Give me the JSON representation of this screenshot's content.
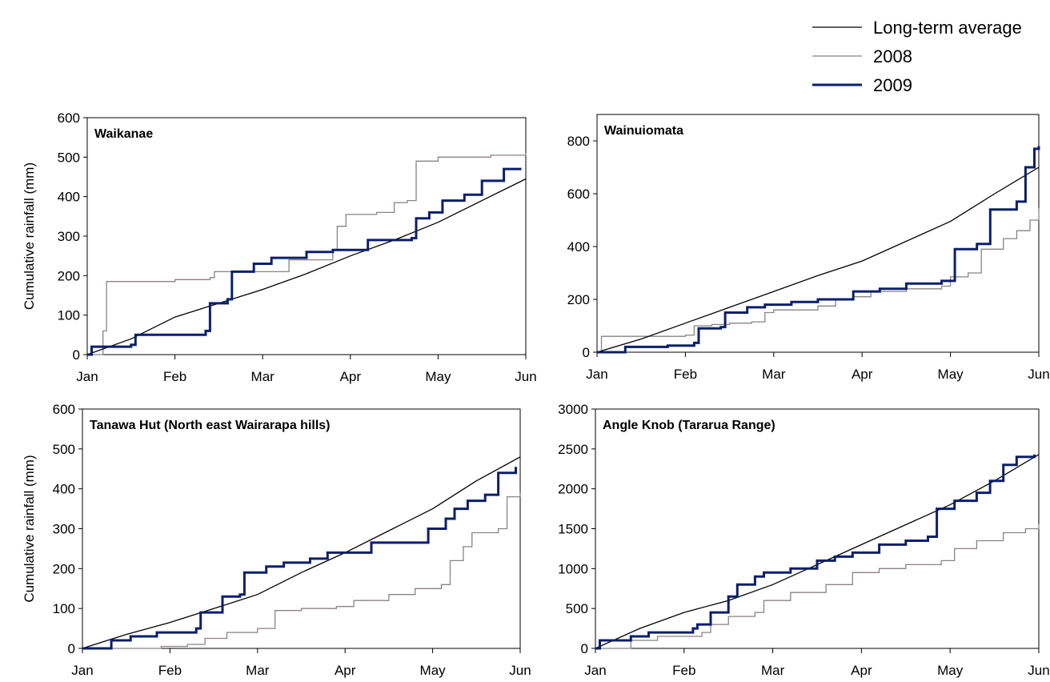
{
  "legend": {
    "entries": [
      {
        "label": "Long-term average",
        "color": "#000000",
        "weight": "thin"
      },
      {
        "label": "2008",
        "color": "#8c8282",
        "weight": "thin"
      },
      {
        "label": "2009",
        "color": "#0b1f6b",
        "weight": "thick"
      }
    ],
    "placement": "top-right"
  },
  "chart_data": [
    {
      "type": "line",
      "title": "Waikanae",
      "ylabel": "Cumulative rainfall (mm)",
      "xlabel": "",
      "x_ticks": [
        "Jan",
        "Feb",
        "Mar",
        "Apr",
        "May",
        "Jun"
      ],
      "xlim": [
        0,
        5
      ],
      "ylim": [
        0,
        600
      ],
      "y_ticks": [
        "0",
        "100",
        "200",
        "300",
        "400",
        "500",
        "600"
      ],
      "grid": false,
      "series": [
        {
          "name": "Long-term average",
          "points": [
            [
              0,
              0
            ],
            [
              0.5,
              40
            ],
            [
              1,
              95
            ],
            [
              1.5,
              130
            ],
            [
              2,
              165
            ],
            [
              2.5,
              205
            ],
            [
              3,
              250
            ],
            [
              3.5,
              290
            ],
            [
              4,
              335
            ],
            [
              4.5,
              390
            ],
            [
              5,
              445
            ]
          ]
        },
        {
          "name": "2008",
          "points": [
            [
              0,
              0
            ],
            [
              0.15,
              0
            ],
            [
              0.18,
              60
            ],
            [
              0.22,
              185
            ],
            [
              1,
              190
            ],
            [
              1.4,
              195
            ],
            [
              1.45,
              210
            ],
            [
              2.3,
              240
            ],
            [
              2.7,
              240
            ],
            [
              2.8,
              265
            ],
            [
              2.85,
              325
            ],
            [
              2.95,
              355
            ],
            [
              3.3,
              360
            ],
            [
              3.5,
              385
            ],
            [
              3.65,
              390
            ],
            [
              3.75,
              490
            ],
            [
              4,
              500
            ],
            [
              4.6,
              505
            ],
            [
              5,
              510
            ]
          ]
        },
        {
          "name": "2009",
          "points": [
            [
              0,
              0
            ],
            [
              0.05,
              20
            ],
            [
              0.5,
              25
            ],
            [
              0.55,
              50
            ],
            [
              1.35,
              60
            ],
            [
              1.4,
              130
            ],
            [
              1.6,
              140
            ],
            [
              1.65,
              210
            ],
            [
              1.9,
              230
            ],
            [
              2.1,
              245
            ],
            [
              2.5,
              260
            ],
            [
              2.8,
              265
            ],
            [
              3.1,
              265
            ],
            [
              3.2,
              290
            ],
            [
              3.7,
              295
            ],
            [
              3.75,
              345
            ],
            [
              3.9,
              360
            ],
            [
              4.05,
              390
            ],
            [
              4.3,
              405
            ],
            [
              4.5,
              440
            ],
            [
              4.75,
              470
            ],
            [
              4.95,
              470
            ]
          ]
        }
      ]
    },
    {
      "type": "line",
      "title": "Wainuiomata",
      "ylabel": "",
      "xlabel": "",
      "x_ticks": [
        "Jan",
        "Feb",
        "Mar",
        "Apr",
        "May",
        "Jun"
      ],
      "xlim": [
        0,
        5
      ],
      "ylim": [
        0,
        900
      ],
      "y_ticks": [
        "0",
        "200",
        "400",
        "600",
        "800"
      ],
      "grid": false,
      "series": [
        {
          "name": "Long-term average",
          "points": [
            [
              0,
              0
            ],
            [
              0.5,
              50
            ],
            [
              1,
              110
            ],
            [
              1.5,
              170
            ],
            [
              2,
              230
            ],
            [
              2.5,
              290
            ],
            [
              3,
              345
            ],
            [
              3.5,
              420
            ],
            [
              4,
              495
            ],
            [
              4.5,
              600
            ],
            [
              5,
              700
            ]
          ]
        },
        {
          "name": "2008",
          "points": [
            [
              0,
              0
            ],
            [
              0.05,
              60
            ],
            [
              1,
              65
            ],
            [
              1.1,
              100
            ],
            [
              1.3,
              105
            ],
            [
              1.5,
              110
            ],
            [
              1.75,
              115
            ],
            [
              1.9,
              150
            ],
            [
              2,
              160
            ],
            [
              2.5,
              175
            ],
            [
              2.7,
              200
            ],
            [
              2.9,
              210
            ],
            [
              3.1,
              230
            ],
            [
              3.5,
              240
            ],
            [
              3.9,
              250
            ],
            [
              4,
              285
            ],
            [
              4.2,
              300
            ],
            [
              4.35,
              390
            ],
            [
              4.6,
              430
            ],
            [
              4.75,
              460
            ],
            [
              4.9,
              500
            ],
            [
              5,
              545
            ]
          ]
        },
        {
          "name": "2009",
          "points": [
            [
              0,
              0
            ],
            [
              0.3,
              0
            ],
            [
              0.32,
              20
            ],
            [
              0.8,
              25
            ],
            [
              1.1,
              35
            ],
            [
              1.15,
              90
            ],
            [
              1.4,
              95
            ],
            [
              1.45,
              150
            ],
            [
              1.7,
              170
            ],
            [
              1.9,
              180
            ],
            [
              2.2,
              190
            ],
            [
              2.5,
              200
            ],
            [
              2.9,
              230
            ],
            [
              3.2,
              240
            ],
            [
              3.5,
              260
            ],
            [
              3.9,
              270
            ],
            [
              4.05,
              390
            ],
            [
              4.3,
              410
            ],
            [
              4.45,
              540
            ],
            [
              4.75,
              570
            ],
            [
              4.85,
              700
            ],
            [
              4.95,
              770
            ],
            [
              5,
              780
            ]
          ]
        }
      ]
    },
    {
      "type": "line",
      "title": "Tanawa Hut (North east Wairarapa hills)",
      "ylabel": "Cumulative rainfall (mm)",
      "xlabel": "",
      "x_ticks": [
        "Jan",
        "Feb",
        "Mar",
        "Apr",
        "May",
        "Jun"
      ],
      "xlim": [
        0,
        5
      ],
      "ylim": [
        0,
        600
      ],
      "y_ticks": [
        "0",
        "100",
        "200",
        "300",
        "400",
        "500",
        "600"
      ],
      "grid": false,
      "series": [
        {
          "name": "Long-term average",
          "points": [
            [
              0,
              0
            ],
            [
              0.5,
              35
            ],
            [
              1,
              65
            ],
            [
              1.5,
              100
            ],
            [
              2,
              135
            ],
            [
              2.5,
              190
            ],
            [
              3,
              240
            ],
            [
              3.5,
              295
            ],
            [
              4,
              350
            ],
            [
              4.5,
              420
            ],
            [
              5,
              480
            ]
          ]
        },
        {
          "name": "2008",
          "points": [
            [
              0,
              0
            ],
            [
              0.6,
              0
            ],
            [
              0.9,
              5
            ],
            [
              1.2,
              10
            ],
            [
              1.4,
              25
            ],
            [
              1.65,
              40
            ],
            [
              2,
              50
            ],
            [
              2.2,
              95
            ],
            [
              2.5,
              100
            ],
            [
              2.9,
              105
            ],
            [
              3.1,
              120
            ],
            [
              3.5,
              135
            ],
            [
              3.8,
              150
            ],
            [
              4.1,
              160
            ],
            [
              4.2,
              220
            ],
            [
              4.35,
              255
            ],
            [
              4.45,
              290
            ],
            [
              4.75,
              300
            ],
            [
              4.85,
              380
            ],
            [
              5,
              390
            ]
          ]
        },
        {
          "name": "2009",
          "points": [
            [
              0,
              0
            ],
            [
              0.3,
              0
            ],
            [
              0.33,
              20
            ],
            [
              0.55,
              30
            ],
            [
              0.85,
              40
            ],
            [
              1.3,
              50
            ],
            [
              1.35,
              90
            ],
            [
              1.6,
              130
            ],
            [
              1.8,
              135
            ],
            [
              1.85,
              190
            ],
            [
              2.1,
              205
            ],
            [
              2.3,
              215
            ],
            [
              2.6,
              225
            ],
            [
              2.8,
              240
            ],
            [
              3.3,
              265
            ],
            [
              3.9,
              265
            ],
            [
              3.95,
              300
            ],
            [
              4.15,
              325
            ],
            [
              4.25,
              350
            ],
            [
              4.4,
              370
            ],
            [
              4.6,
              385
            ],
            [
              4.75,
              440
            ],
            [
              4.95,
              455
            ]
          ]
        }
      ]
    },
    {
      "type": "line",
      "title": "Angle Knob (Tararua Range)",
      "ylabel": "",
      "xlabel": "",
      "x_ticks": [
        "Jan",
        "Feb",
        "Mar",
        "Apr",
        "May",
        "Jun"
      ],
      "xlim": [
        0,
        5
      ],
      "ylim": [
        0,
        3000
      ],
      "y_ticks": [
        "0",
        "500",
        "1000",
        "1500",
        "2000",
        "2500",
        "3000"
      ],
      "grid": false,
      "series": [
        {
          "name": "Long-term average",
          "points": [
            [
              0,
              0
            ],
            [
              0.5,
              250
            ],
            [
              1,
              450
            ],
            [
              1.5,
              600
            ],
            [
              2,
              800
            ],
            [
              2.5,
              1050
            ],
            [
              3,
              1300
            ],
            [
              3.5,
              1550
            ],
            [
              4,
              1800
            ],
            [
              4.5,
              2100
            ],
            [
              5,
              2430
            ]
          ]
        },
        {
          "name": "2008",
          "points": [
            [
              0,
              0
            ],
            [
              0.3,
              0
            ],
            [
              0.4,
              100
            ],
            [
              0.7,
              150
            ],
            [
              1.2,
              200
            ],
            [
              1.3,
              300
            ],
            [
              1.5,
              400
            ],
            [
              1.8,
              450
            ],
            [
              1.9,
              600
            ],
            [
              2.2,
              700
            ],
            [
              2.6,
              800
            ],
            [
              2.8,
              800
            ],
            [
              2.9,
              950
            ],
            [
              3.2,
              1000
            ],
            [
              3.5,
              1050
            ],
            [
              3.9,
              1100
            ],
            [
              4.05,
              1250
            ],
            [
              4.3,
              1350
            ],
            [
              4.6,
              1450
            ],
            [
              4.85,
              1500
            ],
            [
              5,
              1560
            ]
          ]
        },
        {
          "name": "2009",
          "points": [
            [
              0,
              0
            ],
            [
              0.05,
              100
            ],
            [
              0.4,
              150
            ],
            [
              0.6,
              200
            ],
            [
              1.1,
              250
            ],
            [
              1.15,
              300
            ],
            [
              1.3,
              450
            ],
            [
              1.5,
              650
            ],
            [
              1.6,
              800
            ],
            [
              1.8,
              900
            ],
            [
              1.9,
              950
            ],
            [
              2.2,
              1000
            ],
            [
              2.5,
              1100
            ],
            [
              2.7,
              1150
            ],
            [
              2.9,
              1200
            ],
            [
              3.2,
              1300
            ],
            [
              3.5,
              1350
            ],
            [
              3.75,
              1400
            ],
            [
              3.85,
              1750
            ],
            [
              4.05,
              1850
            ],
            [
              4.3,
              1950
            ],
            [
              4.45,
              2100
            ],
            [
              4.6,
              2300
            ],
            [
              4.75,
              2400
            ],
            [
              4.95,
              2430
            ]
          ]
        }
      ]
    }
  ]
}
